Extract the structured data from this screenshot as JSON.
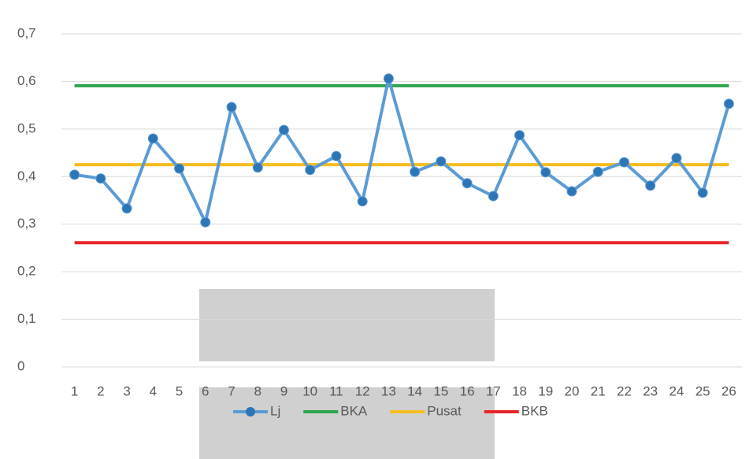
{
  "chart_data": {
    "type": "line",
    "categories": [
      "1",
      "2",
      "3",
      "4",
      "5",
      "6",
      "7",
      "8",
      "9",
      "10",
      "11",
      "12",
      "13",
      "14",
      "15",
      "16",
      "17",
      "18",
      "19",
      "20",
      "21",
      "22",
      "23",
      "24",
      "25",
      "26"
    ],
    "series": [
      {
        "name": "Lj",
        "color": "#5b9bd5",
        "marker": true,
        "values": [
          0.404,
          0.396,
          0.333,
          0.48,
          0.417,
          0.304,
          0.546,
          0.419,
          0.498,
          0.414,
          0.443,
          0.348,
          0.606,
          0.41,
          0.432,
          0.386,
          0.359,
          0.487,
          0.409,
          0.369,
          0.41,
          0.43,
          0.381,
          0.439,
          0.366,
          0.553
        ]
      },
      {
        "name": "BKA",
        "color": "#2ea44f",
        "marker": false,
        "values": [
          0.591,
          0.591,
          0.591,
          0.591,
          0.591,
          0.591,
          0.591,
          0.591,
          0.591,
          0.591,
          0.591,
          0.591,
          0.591,
          0.591,
          0.591,
          0.591,
          0.591,
          0.591,
          0.591,
          0.591,
          0.591,
          0.591,
          0.591,
          0.591,
          0.591,
          0.591
        ]
      },
      {
        "name": "Pusat",
        "color": "#f5bd1f",
        "marker": false,
        "values": [
          0.425,
          0.425,
          0.425,
          0.425,
          0.425,
          0.425,
          0.425,
          0.425,
          0.425,
          0.425,
          0.425,
          0.425,
          0.425,
          0.425,
          0.425,
          0.425,
          0.425,
          0.425,
          0.425,
          0.425,
          0.425,
          0.425,
          0.425,
          0.425,
          0.425,
          0.425
        ]
      },
      {
        "name": "BKB",
        "color": "#e8262a",
        "marker": false,
        "values": [
          0.261,
          0.261,
          0.261,
          0.261,
          0.261,
          0.261,
          0.261,
          0.261,
          0.261,
          0.261,
          0.261,
          0.261,
          0.261,
          0.261,
          0.261,
          0.261,
          0.261,
          0.261,
          0.261,
          0.261,
          0.261,
          0.261,
          0.261,
          0.261,
          0.261,
          0.261
        ]
      }
    ],
    "ylim": [
      0,
      0.7
    ],
    "yticks": [
      0,
      {
        "value": 0.1,
        "label": "0,1"
      },
      {
        "value": 0.2,
        "label": "0,2"
      },
      {
        "value": 0.3,
        "label": "0,3"
      },
      {
        "value": 0.4,
        "label": "0,4"
      },
      {
        "value": 0.5,
        "label": "0,5"
      },
      {
        "value": 0.6,
        "label": "0,6"
      },
      {
        "value": 0.7,
        "label": "0,7"
      }
    ],
    "grid": true,
    "legend": "bottom"
  }
}
